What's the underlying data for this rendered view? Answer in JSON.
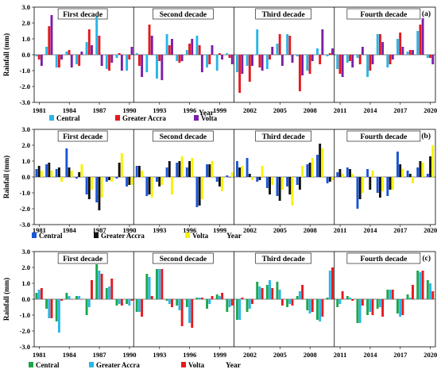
{
  "chart_data": [
    {
      "type": "bar",
      "panel_label": "(a)",
      "ylabel": "Rainfall (mm)",
      "xlabel": "Year",
      "ylim": [
        -3.0,
        3.0
      ],
      "yticks": [
        "3.0",
        "2.0",
        "1.0",
        "0.0",
        "-1.0",
        "-2.0",
        "-3.0"
      ],
      "xticks": [
        "1981",
        "1984",
        "1987",
        "1990",
        "1993",
        "1996",
        "1999",
        "2002",
        "2005",
        "2008",
        "2011",
        "2014",
        "2017",
        "2020"
      ],
      "decades": [
        "First decade",
        "Second decade",
        "Third decade",
        "Fourth decade"
      ],
      "colors": [
        "#29b6e8",
        "#e6191d",
        "#7b1fa8"
      ],
      "series": [
        {
          "name": "Central",
          "values": [
            -0.1,
            0.5,
            -0.8,
            0.2,
            -0.6,
            0.8,
            2.4,
            -0.9,
            -0.2,
            -1.0,
            0.1,
            -1.1,
            -1.5,
            1.3,
            -0.4,
            0.3,
            1.2,
            -0.8,
            -1.0,
            0.1,
            -1.1,
            -0.7,
            1.6,
            -0.9,
            0.7,
            1.3,
            -0.1,
            -1.0,
            0.4,
            -0.1,
            -0.9,
            -0.5,
            -0.2,
            -1.4,
            1.3,
            -0.8,
            1.0,
            0.2,
            1.5,
            -0.2
          ]
        },
        {
          "name": "Greater Accra",
          "values": [
            -0.3,
            1.8,
            -0.8,
            0.3,
            -0.7,
            1.6,
            1.2,
            -1.0,
            0.1,
            -0.3,
            -0.7,
            1.9,
            -0.4,
            0.6,
            -0.5,
            0.7,
            0.6,
            -0.6,
            0.1,
            -0.2,
            -2.4,
            -1.7,
            -0.8,
            -0.3,
            1.3,
            1.2,
            -2.3,
            -1.2,
            -0.6,
            0.1,
            -1.2,
            -0.4,
            -0.6,
            -1.0,
            1.3,
            -0.6,
            1.4,
            0.3,
            1.9,
            -0.2
          ]
        },
        {
          "name": "Volta",
          "values": [
            -0.7,
            2.5,
            -0.3,
            -0.8,
            0.2,
            0.6,
            -0.7,
            -0.5,
            -1.0,
            0.5,
            -1.4,
            1.2,
            -1.6,
            1.0,
            -0.4,
            1.0,
            -1.1,
            0.6,
            -0.3,
            -0.6,
            -1.2,
            -0.7,
            -1.0,
            0.5,
            -0.7,
            -0.5,
            -1.3,
            -0.4,
            1.6,
            0.4,
            -1.4,
            -0.8,
            0.5,
            -0.6,
            0.8,
            -0.3,
            0.5,
            0.3,
            2.3,
            -0.6
          ]
        }
      ],
      "legend": [
        "Central",
        "Greater Accra",
        "Volta"
      ]
    },
    {
      "type": "bar",
      "panel_label": "(b)",
      "ylabel": "Rainfall (mm)",
      "xlabel": "Year",
      "ylim": [
        -3.0,
        3.0
      ],
      "yticks": [
        "3.0",
        "2.0",
        "1.0",
        "0.0",
        "-1.0",
        "-2.0",
        "-3.0"
      ],
      "xticks": [
        "1981",
        "1984",
        "1987",
        "1990",
        "1993",
        "1996",
        "1999",
        "2002",
        "2005",
        "2008",
        "2011",
        "2014",
        "2017",
        "2020"
      ],
      "decades": [
        "First decade",
        "Second decade",
        "Third decade",
        "Fourth decade"
      ],
      "colors": [
        "#1a56d6",
        "#111111",
        "#f7f200"
      ],
      "series": [
        {
          "name": "Central",
          "values": [
            0.5,
            0.8,
            0.5,
            1.8,
            -0.1,
            -1.1,
            -1.6,
            -0.3,
            -0.1,
            -0.6,
            0.7,
            -1.2,
            -0.3,
            0.6,
            0.9,
            0.6,
            -1.9,
            0.8,
            -0.3,
            0.1,
            1.0,
            1.2,
            -0.3,
            -0.7,
            -1.2,
            -0.6,
            -0.5,
            0.8,
            1.4,
            -0.4,
            0.3,
            0.6,
            -2.0,
            0.5,
            -1.0,
            -1.2,
            1.6,
            0.4,
            0.6,
            0.2
          ]
        },
        {
          "name": "Greater Accra",
          "values": [
            0.7,
            0.9,
            0.6,
            0.6,
            0.3,
            -1.4,
            -2.1,
            -0.2,
            0.9,
            -0.5,
            0.7,
            -1.1,
            -0.6,
            1.0,
            1.0,
            1.0,
            -1.8,
            0.8,
            -0.6,
            0.0,
            0.6,
            0.2,
            -0.2,
            -1.1,
            -1.5,
            -1.1,
            -0.8,
            0.9,
            2.1,
            -0.3,
            0.5,
            0.5,
            -1.4,
            -0.8,
            -1.3,
            -0.8,
            0.8,
            0.2,
            1.0,
            1.3
          ]
        },
        {
          "name": "Volta",
          "values": [
            0.4,
            0.4,
            -0.3,
            0.4,
            0.8,
            -0.8,
            -1.3,
            -0.3,
            1.5,
            -0.5,
            0.4,
            -1.3,
            -0.5,
            -1.1,
            1.3,
            1.2,
            -1.4,
            1.0,
            -0.9,
            0.3,
            0.7,
            -0.2,
            0.7,
            -0.5,
            -0.8,
            -1.8,
            0.7,
            1.2,
            1.8,
            -0.2,
            0.2,
            0.2,
            -1.0,
            0.4,
            -0.9,
            -0.8,
            0.5,
            -0.4,
            0.9,
            2.0
          ]
        }
      ],
      "legend": [
        "Central",
        "Greater Accra",
        "Volta"
      ]
    },
    {
      "type": "bar",
      "panel_label": "(c)",
      "ylabel": "Rainfall (mm)",
      "xlabel": "Year",
      "ylim": [
        -3.0,
        3.0
      ],
      "yticks": [
        "3.0",
        "2.0",
        "1.0",
        "0.0",
        "-1.0",
        "-2.0",
        "-3.0"
      ],
      "xticks": [
        "1981",
        "1984",
        "1987",
        "1990",
        "1993",
        "1996",
        "1999",
        "2002",
        "2005",
        "2008",
        "2011",
        "2014",
        "2017",
        "2020"
      ],
      "decades": [
        "First decade",
        "Second decade",
        "Third decade",
        "Fourth decade"
      ],
      "colors": [
        "#1ca64a",
        "#29b6e8",
        "#e6191d"
      ],
      "series": [
        {
          "name": "Central",
          "values": [
            0.4,
            -0.6,
            -1.4,
            0.4,
            0.2,
            -1.0,
            2.2,
            0.7,
            -0.4,
            -0.3,
            -0.8,
            1.6,
            1.9,
            -0.1,
            -0.4,
            -0.5,
            0.1,
            -0.6,
            0.3,
            -0.8,
            -1.3,
            -0.8,
            1.1,
            0.9,
            1.1,
            -0.5,
            0.2,
            -0.7,
            -1.3,
            0.1,
            -0.5,
            0.2,
            -1.5,
            -1.0,
            -0.6,
            0.6,
            -0.9,
            0.3,
            1.8,
            1.2
          ]
        },
        {
          "name": "Greater Accra",
          "values": [
            0.6,
            -1.2,
            -2.1,
            0.2,
            0.2,
            -0.5,
            1.8,
            0.8,
            -0.3,
            -0.4,
            -0.8,
            1.4,
            1.9,
            -0.3,
            -0.7,
            -1.5,
            0.1,
            -0.3,
            0.2,
            -0.5,
            -1.3,
            -0.6,
            0.8,
            1.2,
            0.6,
            -0.3,
            0.5,
            -0.9,
            -1.4,
            1.8,
            -0.3,
            0.1,
            -1.5,
            -0.8,
            -0.5,
            0.6,
            -1.1,
            0.1,
            1.7,
            1.0
          ]
        },
        {
          "name": "Volta",
          "values": [
            0.7,
            -1.2,
            -0.1,
            0.0,
            0.0,
            1.2,
            1.6,
            1.3,
            -0.4,
            -0.1,
            -1.1,
            0.2,
            1.9,
            -0.5,
            -1.7,
            -1.8,
            0.1,
            0.2,
            0.4,
            -0.4,
            0.1,
            -0.3,
            0.7,
            0.7,
            -0.4,
            -0.4,
            0.9,
            -0.8,
            -1.1,
            2.0,
            0.5,
            -0.1,
            -0.4,
            -1.0,
            -1.1,
            0.6,
            -1.0,
            0.9,
            1.8,
            0.5
          ]
        }
      ],
      "legend": [
        "Central",
        "Greater Accra",
        "Volta"
      ]
    }
  ]
}
